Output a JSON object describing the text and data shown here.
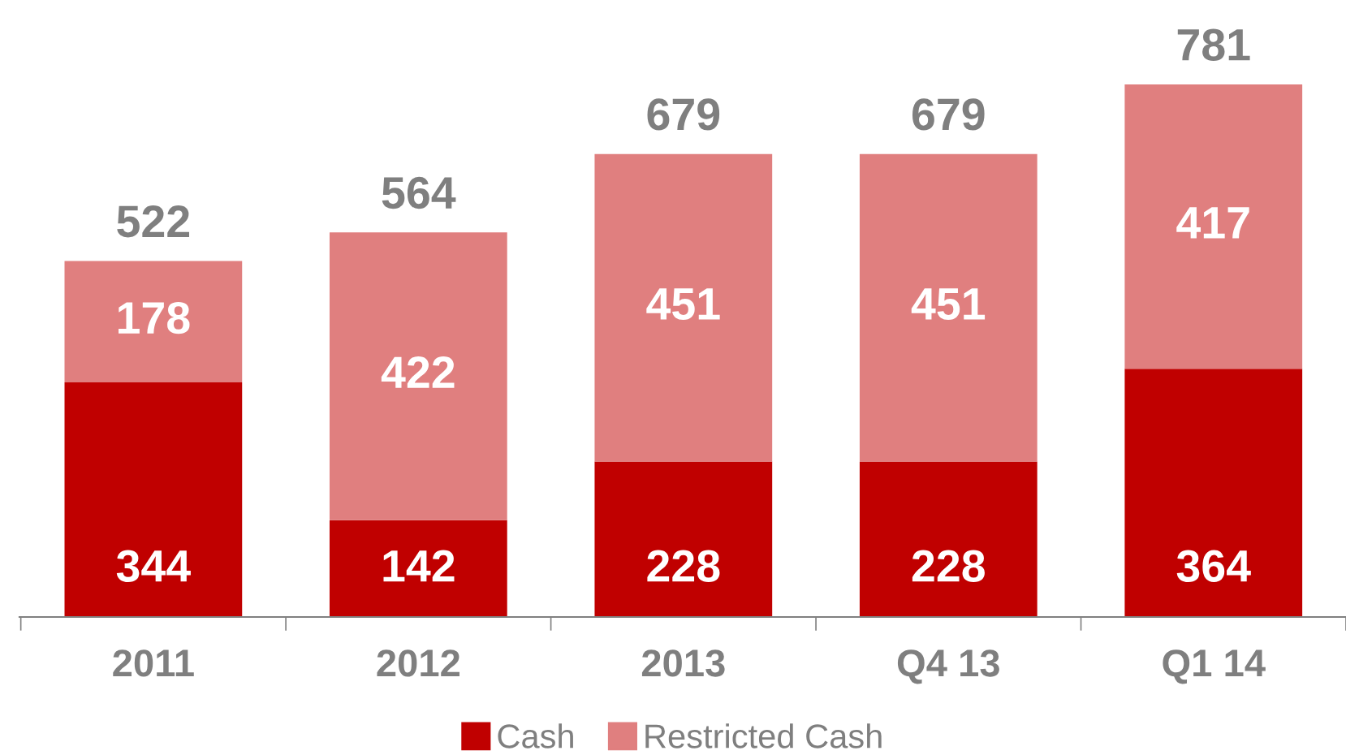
{
  "chart_data": {
    "type": "bar",
    "stacked": true,
    "categories": [
      "2011",
      "2012",
      "2013",
      "Q4 13",
      "Q1 14"
    ],
    "series": [
      {
        "name": "Cash",
        "color": "#c00000",
        "values": [
          344,
          142,
          228,
          228,
          364
        ]
      },
      {
        "name": "Restricted Cash",
        "color": "#e07f7f",
        "values": [
          178,
          422,
          451,
          451,
          417
        ]
      }
    ],
    "data_labels": true,
    "totals": [
      "522",
      "564",
      "679",
      "679",
      "781"
    ],
    "legend": "bottom",
    "grid": false
  }
}
